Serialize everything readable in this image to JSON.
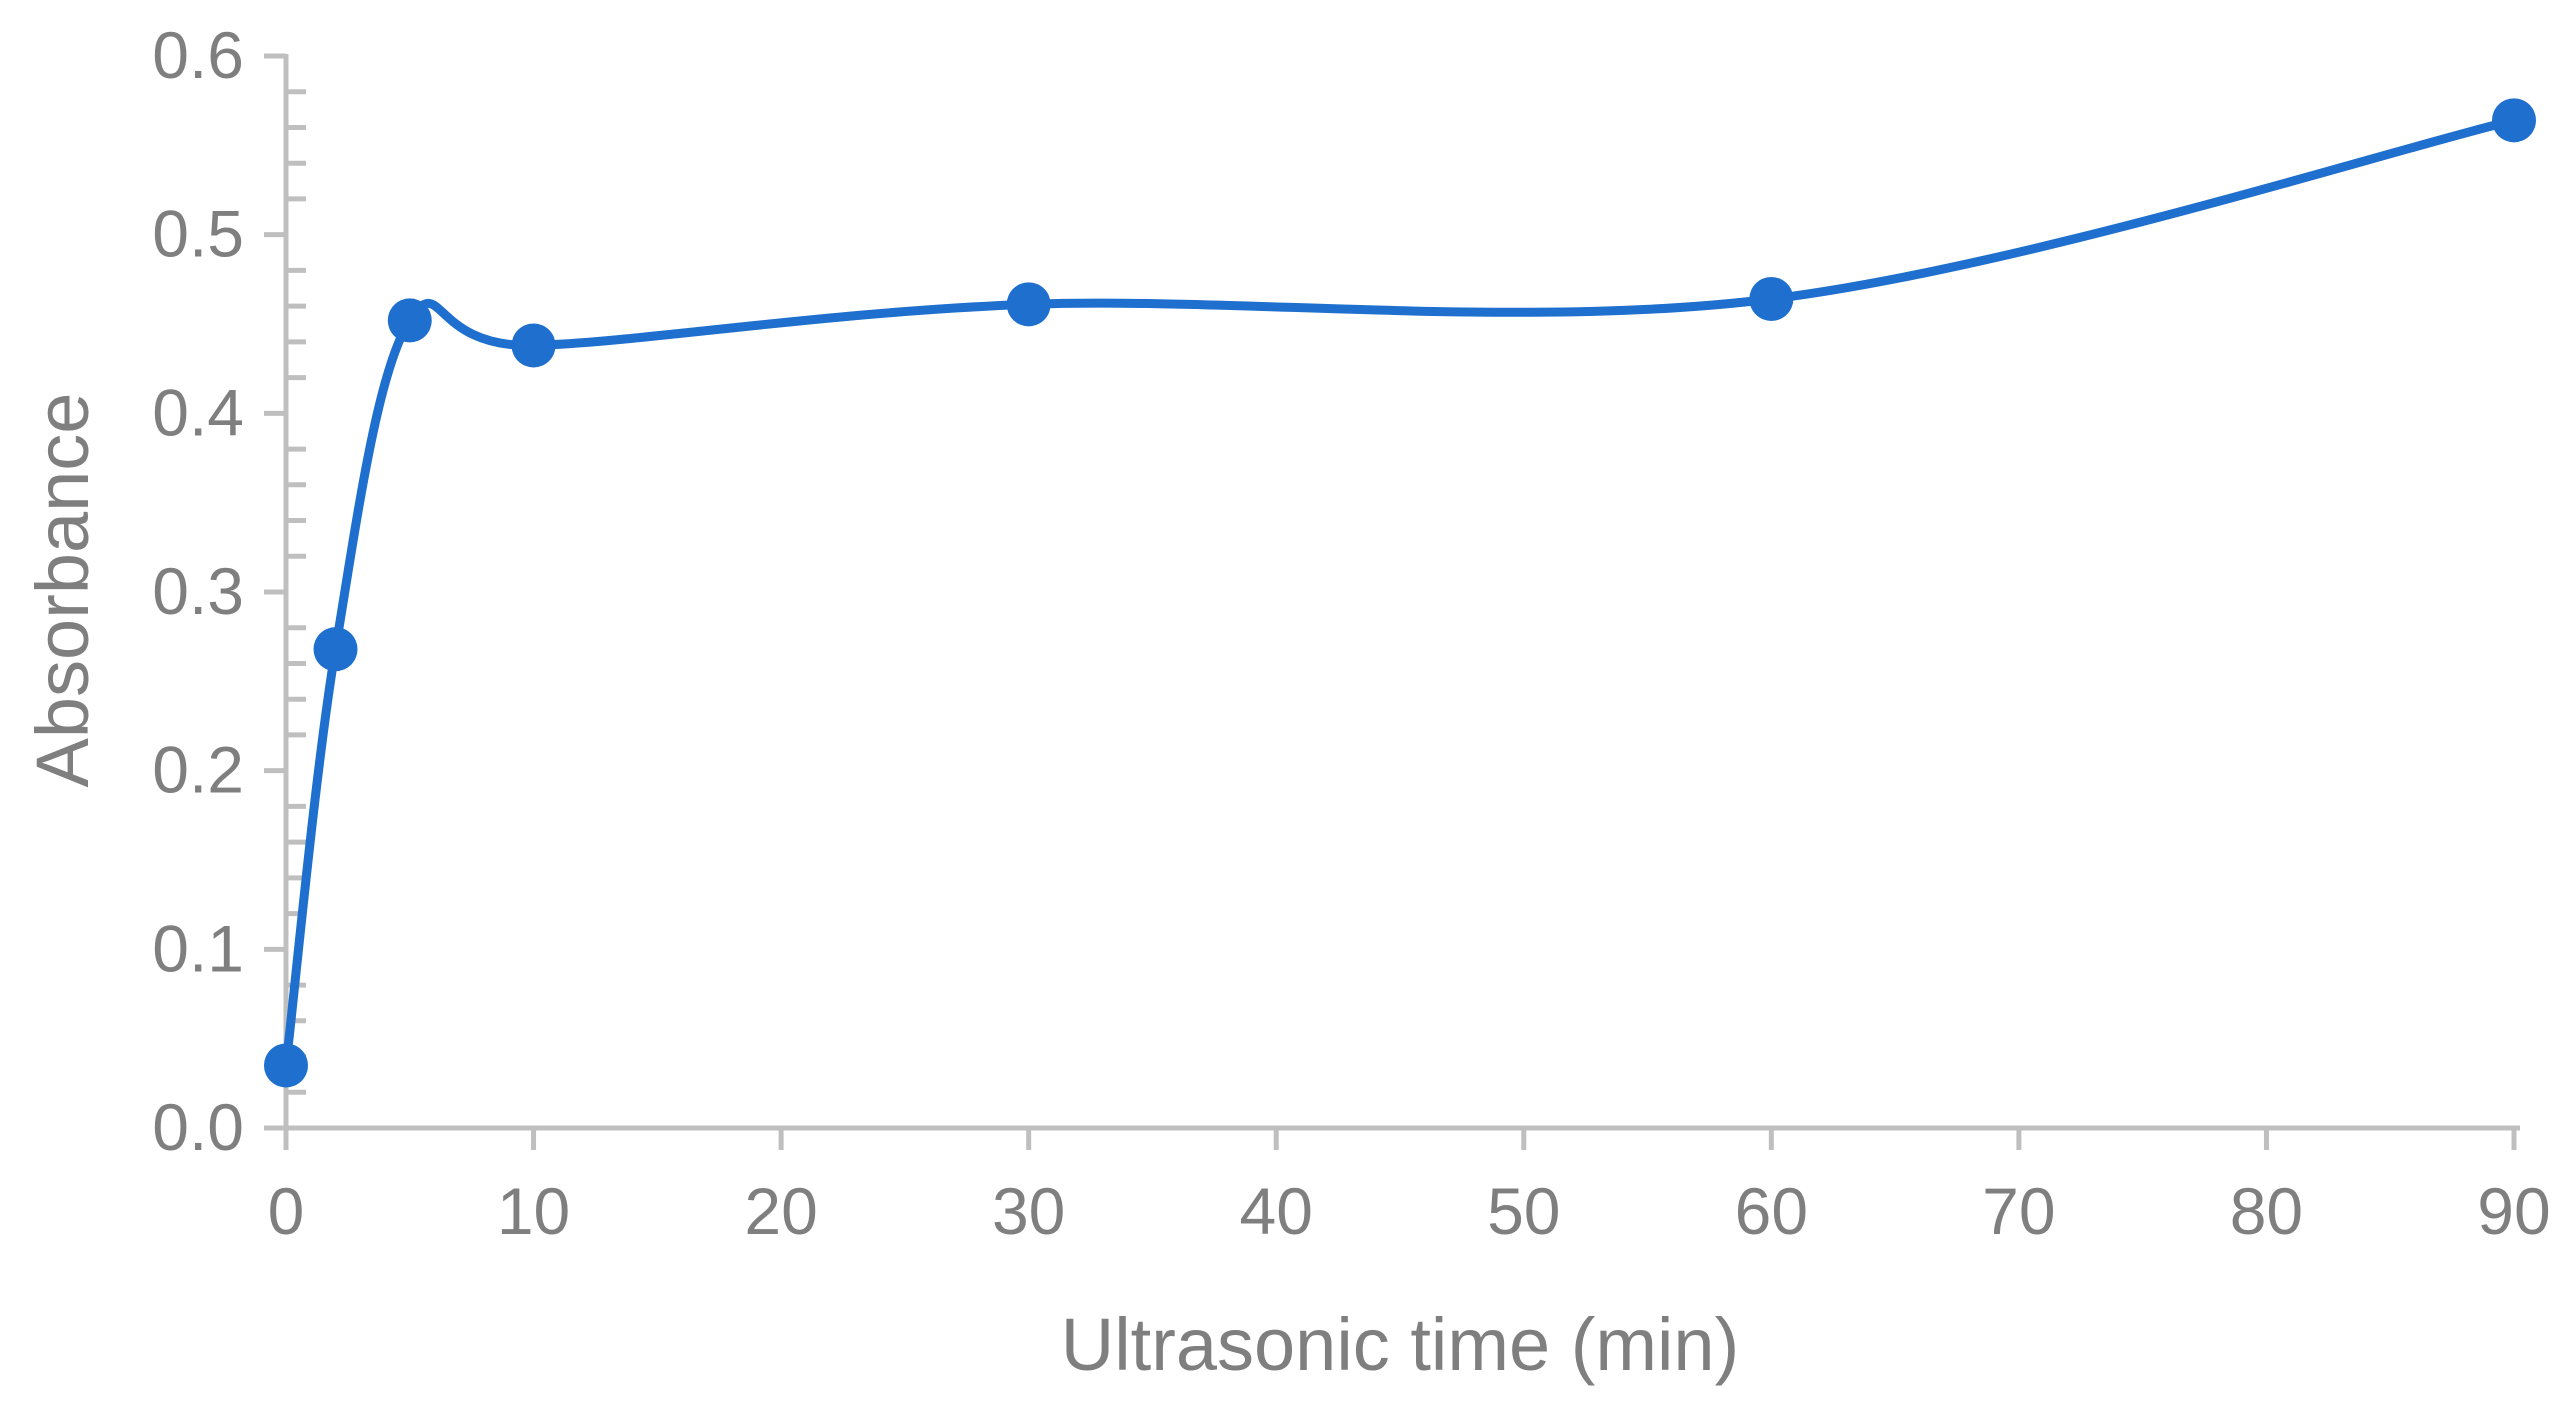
{
  "chart_data": {
    "type": "line",
    "title": "",
    "xlabel": "Ultrasonic time (min)",
    "ylabel": "Absorbance",
    "xlim": [
      0,
      90
    ],
    "ylim": [
      0,
      0.6
    ],
    "x_ticks": [
      0,
      10,
      20,
      30,
      40,
      50,
      60,
      70,
      80,
      90
    ],
    "x_tick_labels": [
      "0",
      "10",
      "20",
      "30",
      "40",
      "50",
      "60",
      "70",
      "80",
      "90"
    ],
    "y_ticks": [
      0,
      0.1,
      0.2,
      0.3,
      0.4,
      0.5,
      0.6
    ],
    "y_tick_labels": [
      "0.0",
      "0.1",
      "0.2",
      "0.3",
      "0.4",
      "0.5",
      "0.6"
    ],
    "y_minor_tick_step": 0.02,
    "grid": false,
    "legend": "none",
    "smoothed": true,
    "series": [
      {
        "color": "#1f6fcf",
        "x": [
          0,
          2,
          5,
          10,
          30,
          60,
          90
        ],
        "y": [
          0.035,
          0.268,
          0.452,
          0.438,
          0.461,
          0.464,
          0.564
        ]
      }
    ]
  },
  "colors": {
    "axis": "#bfbfbf",
    "text": "#7f7f7f",
    "series": "#1f6fcf"
  }
}
